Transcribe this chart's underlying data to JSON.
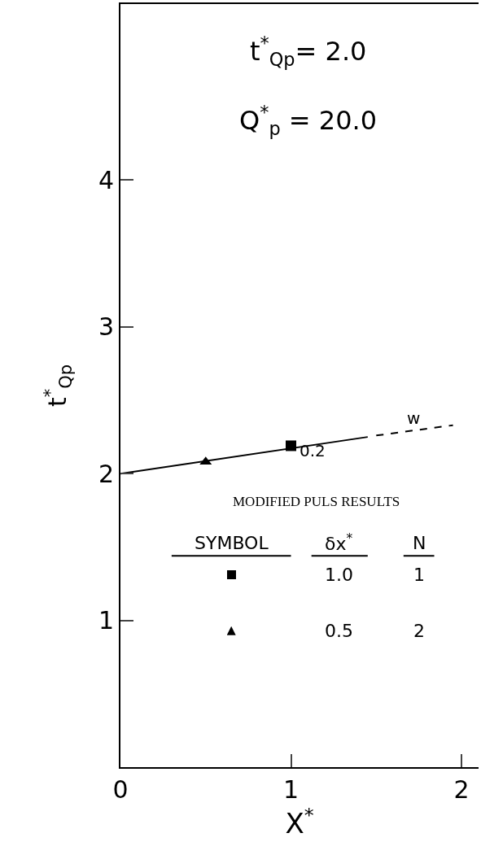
{
  "chart_data": {
    "type": "line",
    "title": "t$^{*}$$_{Qp}$= 2.0",
    "subtitle": "Q$^{*}$$_{p}$ = 20.0",
    "xlabel": "X$^{*}$",
    "ylabel": "t$^{*}$$_{Qp}$",
    "xlim": [
      0,
      2.1
    ],
    "ylim": [
      0,
      5.2
    ],
    "xticks": [
      0,
      1,
      2
    ],
    "yticks": [
      1,
      2,
      3,
      4
    ],
    "grid": false,
    "series": [
      {
        "color": "#000000",
        "line_style": "solid",
        "marker": "none",
        "x": [
          0,
          1.45
        ],
        "values": [
          2.0,
          2.25
        ]
      },
      {
        "color": "#000000",
        "line_style": "dashed",
        "marker": "none",
        "x": [
          1.5,
          1.95
        ],
        "values": [
          2.26,
          2.33
        ]
      },
      {
        "type": "scatter",
        "color": "#000000",
        "marker": "square",
        "x": [
          1.0
        ],
        "values": [
          2.19
        ]
      },
      {
        "type": "scatter",
        "color": "#000000",
        "marker": "triangle",
        "x": [
          0.5
        ],
        "values": [
          2.08
        ]
      }
    ],
    "annotations": [
      {
        "text": "0.2",
        "x": 1.0,
        "y": 2.19
      },
      {
        "text": "w",
        "x": 1.72,
        "y": 2.3
      },
      "MODIFIED PULS RESULTS",
      "SYMBOL",
      "δx$^{*}$",
      "N",
      "1.0",
      "1",
      "0.5",
      "2"
    ]
  }
}
